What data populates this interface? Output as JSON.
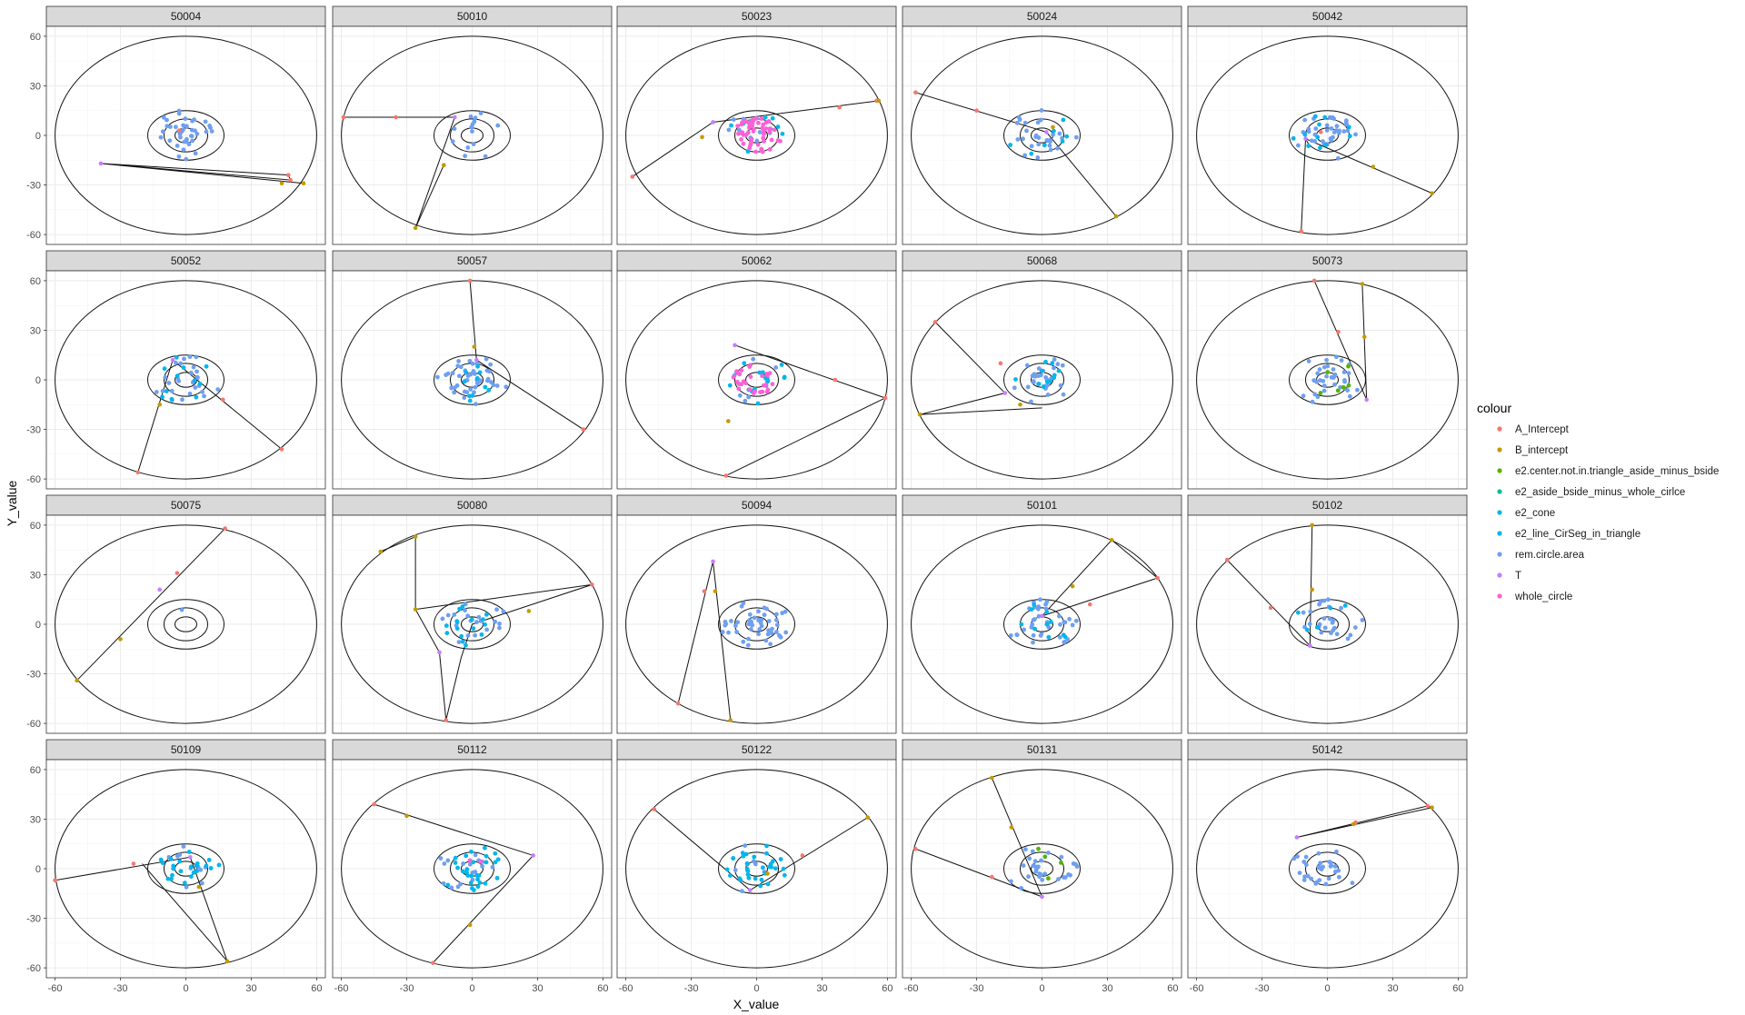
{
  "chart_data": {
    "type": "scatter",
    "xlabel": "X_value",
    "ylabel": "Y_value",
    "xlim": [
      -64,
      64
    ],
    "ylim": [
      -66,
      66
    ],
    "xticks": [
      -60,
      -30,
      0,
      30,
      60
    ],
    "yticks": [
      -60,
      -30,
      0,
      30,
      60
    ],
    "grid": true,
    "legend_position": "right",
    "legend": {
      "title": "colour",
      "entries": [
        {
          "label": "A_Intercept",
          "color": "#F8766D"
        },
        {
          "label": "B_intercept",
          "color": "#C49A00"
        },
        {
          "label": "e2.center.not.in.triangle_aside_minus_bside",
          "color": "#53B400"
        },
        {
          "label": "e2_aside_bside_minus_whole_cirlce",
          "color": "#00C094"
        },
        {
          "label": "e2_cone",
          "color": "#00B6EB"
        },
        {
          "label": "e2_line_CirSeg_in_triangle",
          "color": "#00B6EB"
        },
        {
          "label": "rem.circle.area",
          "color": "#6F9FF0"
        },
        {
          "label": "T",
          "color": "#C77CFF"
        },
        {
          "label": "whole_circle",
          "color": "#FB61D7"
        }
      ]
    },
    "circles": {
      "big": [
        60,
        60
      ],
      "ring3": [
        17.5,
        15
      ],
      "ring2": [
        10,
        10
      ],
      "ring1": [
        5,
        4.5
      ]
    },
    "panels": [
      {
        "id": "50004",
        "T": [
          -39,
          -17
        ],
        "A": [
          [
            48,
            -27
          ],
          [
            47,
            -24
          ],
          [
            -3,
            3
          ]
        ],
        "B": [
          [
            54,
            -29
          ],
          [
            44,
            -29
          ]
        ],
        "tri": [
          [
            -39,
            -17
          ],
          [
            48,
            -27
          ],
          [
            47,
            -24
          ],
          [
            -39,
            -17
          ],
          [
            54,
            -29
          ]
        ],
        "pts": {
          "rem.circle.area": 40,
          "e2_line_CirSeg_in_triangle": 0,
          "e2_cone": 0,
          "whole_circle": 0
        },
        "seed": 11
      },
      {
        "id": "50010",
        "T": [
          -8,
          11
        ],
        "A": [
          [
            -59,
            11
          ],
          [
            -35,
            11
          ]
        ],
        "B": [
          [
            -13,
            -18
          ],
          [
            -26,
            -56
          ]
        ],
        "tri": [
          [
            -59,
            11
          ],
          [
            -8,
            11
          ],
          [
            -26,
            -56
          ],
          [
            -13,
            -18
          ]
        ],
        "pts": {
          "rem.circle.area": 14,
          "e2_line_CirSeg_in_triangle": 0,
          "e2_cone": 0,
          "whole_circle": 0
        },
        "seed": 23
      },
      {
        "id": "50023",
        "T": [
          -20,
          8
        ],
        "A": [
          [
            -57,
            -25
          ],
          [
            38,
            17
          ],
          [
            55,
            21
          ]
        ],
        "B": [
          [
            -25,
            -1
          ],
          [
            56,
            21
          ]
        ],
        "tri": [
          [
            -57,
            -25
          ],
          [
            -20,
            8
          ],
          [
            56,
            21
          ]
        ],
        "pts": {
          "rem.circle.area": 10,
          "e2_line_CirSeg_in_triangle": 0,
          "e2_cone": 8,
          "whole_circle": 55
        },
        "seed": 37
      },
      {
        "id": "50024",
        "T": [
          2,
          2
        ],
        "A": [
          [
            -58,
            26
          ],
          [
            -30,
            15
          ]
        ],
        "B": [
          [
            34,
            -49
          ],
          [
            5,
            5
          ]
        ],
        "tri": [
          [
            -58,
            26
          ],
          [
            2,
            2
          ],
          [
            34,
            -49
          ]
        ],
        "pts": {
          "rem.circle.area": 28,
          "e2_line_CirSeg_in_triangle": 4,
          "e2_cone": 3,
          "whole_circle": 0
        },
        "seed": 41
      },
      {
        "id": "50042",
        "T": [
          -10,
          -2
        ],
        "A": [
          [
            -12,
            -58
          ],
          [
            -3,
            2
          ]
        ],
        "B": [
          [
            48,
            -35
          ],
          [
            21,
            -19
          ]
        ],
        "tri": [
          [
            -12,
            -58
          ],
          [
            -10,
            -2
          ],
          [
            48,
            -35
          ]
        ],
        "pts": {
          "rem.circle.area": 35,
          "e2_line_CirSeg_in_triangle": 6,
          "e2_cone": 5,
          "whole_circle": 0
        },
        "seed": 53
      },
      {
        "id": "50052",
        "T": [
          -6,
          12
        ],
        "A": [
          [
            -22,
            -56
          ],
          [
            44,
            -42
          ],
          [
            17,
            -12
          ]
        ],
        "B": [
          [
            -12,
            -15
          ]
        ],
        "tri": [
          [
            -22,
            -56
          ],
          [
            -6,
            12
          ],
          [
            44,
            -42
          ]
        ],
        "pts": {
          "rem.circle.area": 26,
          "e2_line_CirSeg_in_triangle": 5,
          "e2_cone": 6,
          "whole_circle": 0
        },
        "seed": 61
      },
      {
        "id": "50057",
        "T": [
          2,
          12
        ],
        "A": [
          [
            -1,
            60
          ],
          [
            51,
            -30
          ]
        ],
        "B": [
          [
            1,
            20
          ]
        ],
        "tri": [
          [
            -1,
            60
          ],
          [
            2,
            12
          ],
          [
            51,
            -30
          ]
        ],
        "pts": {
          "rem.circle.area": 45,
          "e2_line_CirSeg_in_triangle": 6,
          "e2_cone": 4,
          "whole_circle": 0
        },
        "seed": 71
      },
      {
        "id": "50062",
        "T": [
          -10,
          21
        ],
        "A": [
          [
            59,
            -11
          ],
          [
            36,
            0
          ],
          [
            -14,
            -58
          ]
        ],
        "B": [
          [
            -13,
            -25
          ]
        ],
        "tri": [
          [
            -10,
            21
          ],
          [
            59,
            -11
          ],
          [
            -14,
            -58
          ]
        ],
        "pts": {
          "rem.circle.area": 8,
          "e2_line_CirSeg_in_triangle": 12,
          "e2_cone": 5,
          "whole_circle": 28
        },
        "seed": 83
      },
      {
        "id": "50068",
        "T": [
          -17,
          -8
        ],
        "A": [
          [
            -49,
            35
          ],
          [
            -19,
            10
          ]
        ],
        "B": [
          [
            -56,
            -21
          ],
          [
            -10,
            -15
          ]
        ],
        "tri": [
          [
            -49,
            35
          ],
          [
            -17,
            -8
          ],
          [
            -56,
            -21
          ],
          [
            0,
            -17
          ]
        ],
        "pts": {
          "rem.circle.area": 28,
          "e2_line_CirSeg_in_triangle": 5,
          "e2_cone": 6,
          "whole_circle": 0
        },
        "seed": 97
      },
      {
        "id": "50073",
        "T": [
          18,
          -12
        ],
        "A": [
          [
            -6,
            60
          ],
          [
            5,
            29
          ]
        ],
        "B": [
          [
            16,
            58
          ],
          [
            17,
            26
          ]
        ],
        "tri": [
          [
            -6,
            60
          ],
          [
            18,
            -12
          ],
          [
            16,
            58
          ]
        ],
        "pts": {
          "rem.circle.area": 36,
          "e2.center.not.in.triangle_aside_minus_bside": 6,
          "e2_line_CirSeg_in_triangle": 0,
          "e2_cone": 0,
          "whole_circle": 0
        },
        "seed": 101
      },
      {
        "id": "50075",
        "T": [
          -12,
          21
        ],
        "A": [
          [
            18,
            58
          ],
          [
            -4,
            31
          ]
        ],
        "B": [
          [
            -50,
            -34
          ],
          [
            -30,
            -9
          ]
        ],
        "tri": [
          [
            18,
            58
          ],
          [
            -50,
            -34
          ]
        ],
        "pts": {
          "rem.circle.area": 1,
          "e2_line_CirSeg_in_triangle": 0,
          "e2_cone": 0,
          "whole_circle": 0
        },
        "seed": 113
      },
      {
        "id": "50080",
        "T": [
          -15,
          -17
        ],
        "A": [
          [
            55,
            24
          ],
          [
            -12,
            -58
          ]
        ],
        "B": [
          [
            -42,
            44
          ],
          [
            -26,
            53
          ],
          [
            -26,
            9
          ],
          [
            26,
            8
          ]
        ],
        "tri": [
          [
            -42,
            44
          ],
          [
            -26,
            53
          ],
          [
            -26,
            9
          ],
          [
            -15,
            -17
          ],
          [
            -12,
            -58
          ],
          [
            -5,
            -20
          ],
          [
            0,
            0
          ],
          [
            55,
            24
          ],
          [
            -26,
            9
          ]
        ],
        "pts": {
          "rem.circle.area": 20,
          "e2_line_CirSeg_in_triangle": 8,
          "e2_cone": 8,
          "whole_circle": 0
        },
        "seed": 127
      },
      {
        "id": "50094",
        "T": [
          -20,
          38
        ],
        "A": [
          [
            -36,
            -48
          ],
          [
            -24,
            20
          ]
        ],
        "B": [
          [
            -12,
            -58
          ],
          [
            -19,
            20
          ]
        ],
        "tri": [
          [
            -36,
            -48
          ],
          [
            -20,
            38
          ],
          [
            -12,
            -58
          ]
        ],
        "pts": {
          "rem.circle.area": 50,
          "e2_line_CirSeg_in_triangle": 0,
          "e2_cone": 0,
          "whole_circle": 0
        },
        "seed": 131
      },
      {
        "id": "50101",
        "T": [
          0,
          5
        ],
        "A": [
          [
            53,
            28
          ],
          [
            22,
            12
          ]
        ],
        "B": [
          [
            32,
            51
          ],
          [
            14,
            23
          ]
        ],
        "tri": [
          [
            0,
            5
          ],
          [
            53,
            28
          ],
          [
            32,
            51
          ],
          [
            0,
            5
          ]
        ],
        "pts": {
          "rem.circle.area": 36,
          "e2_line_CirSeg_in_triangle": 5,
          "e2_cone": 5,
          "whole_circle": 0
        },
        "seed": 139
      },
      {
        "id": "50102",
        "T": [
          -8,
          -13
        ],
        "A": [
          [
            -46,
            39
          ],
          [
            -26,
            10
          ]
        ],
        "B": [
          [
            -7,
            60
          ],
          [
            -7,
            21
          ]
        ],
        "tri": [
          [
            -46,
            39
          ],
          [
            -8,
            -13
          ],
          [
            -7,
            60
          ]
        ],
        "pts": {
          "rem.circle.area": 26,
          "e2_line_CirSeg_in_triangle": 3,
          "e2_cone": 2,
          "whole_circle": 0
        },
        "seed": 149
      },
      {
        "id": "50109",
        "T": [
          2,
          7
        ],
        "A": [
          [
            -60,
            -7
          ],
          [
            -24,
            3
          ]
        ],
        "B": [
          [
            19,
            -56
          ],
          [
            6,
            -11
          ]
        ],
        "tri": [
          [
            -60,
            -7
          ],
          [
            2,
            7
          ],
          [
            19,
            -56
          ],
          [
            -20,
            3
          ]
        ],
        "pts": {
          "rem.circle.area": 10,
          "e2_line_CirSeg_in_triangle": 8,
          "e2_cone": 14,
          "whole_circle": 0
        },
        "seed": 157
      },
      {
        "id": "50112",
        "T": [
          28,
          8
        ],
        "A": [
          [
            -45,
            39
          ],
          [
            -18,
            -57
          ]
        ],
        "B": [
          [
            -30,
            32
          ],
          [
            -1,
            -34
          ]
        ],
        "tri": [
          [
            -45,
            39
          ],
          [
            28,
            8
          ],
          [
            -18,
            -57
          ]
        ],
        "pts": {
          "rem.circle.area": 18,
          "e2_line_CirSeg_in_triangle": 22,
          "e2_cone": 6,
          "whole_circle": 2
        },
        "seed": 163
      },
      {
        "id": "50122",
        "T": [
          -3,
          -13
        ],
        "A": [
          [
            -47,
            36
          ],
          [
            21,
            8
          ]
        ],
        "B": [
          [
            51,
            31
          ],
          [
            5,
            -3
          ]
        ],
        "tri": [
          [
            -47,
            36
          ],
          [
            -3,
            -13
          ],
          [
            51,
            31
          ]
        ],
        "pts": {
          "rem.circle.area": 6,
          "e2_line_CirSeg_in_triangle": 4,
          "e2_cone": 28,
          "whole_circle": 0
        },
        "seed": 173
      },
      {
        "id": "50131",
        "T": [
          0,
          -17
        ],
        "A": [
          [
            -58,
            12
          ],
          [
            -23,
            -5
          ]
        ],
        "B": [
          [
            -23,
            55
          ],
          [
            -14,
            25
          ]
        ],
        "tri": [
          [
            -58,
            12
          ],
          [
            0,
            -17
          ],
          [
            -23,
            55
          ]
        ],
        "pts": {
          "rem.circle.area": 30,
          "e2.center.not.in.triangle_aside_minus_bside": 4,
          "e2_line_CirSeg_in_triangle": 0,
          "e2_cone": 0,
          "whole_circle": 0
        },
        "seed": 181
      },
      {
        "id": "50142",
        "T": [
          -14,
          19
        ],
        "A": [
          [
            46,
            38
          ],
          [
            13,
            28
          ]
        ],
        "B": [
          [
            48,
            37
          ],
          [
            12,
            27
          ]
        ],
        "tri": [
          [
            -14,
            19
          ],
          [
            46,
            38
          ],
          [
            48,
            37
          ],
          [
            -14,
            19
          ]
        ],
        "pts": {
          "rem.circle.area": 32,
          "e2_line_CirSeg_in_triangle": 0,
          "e2_cone": 0,
          "whole_circle": 0
        },
        "seed": 191
      }
    ]
  }
}
